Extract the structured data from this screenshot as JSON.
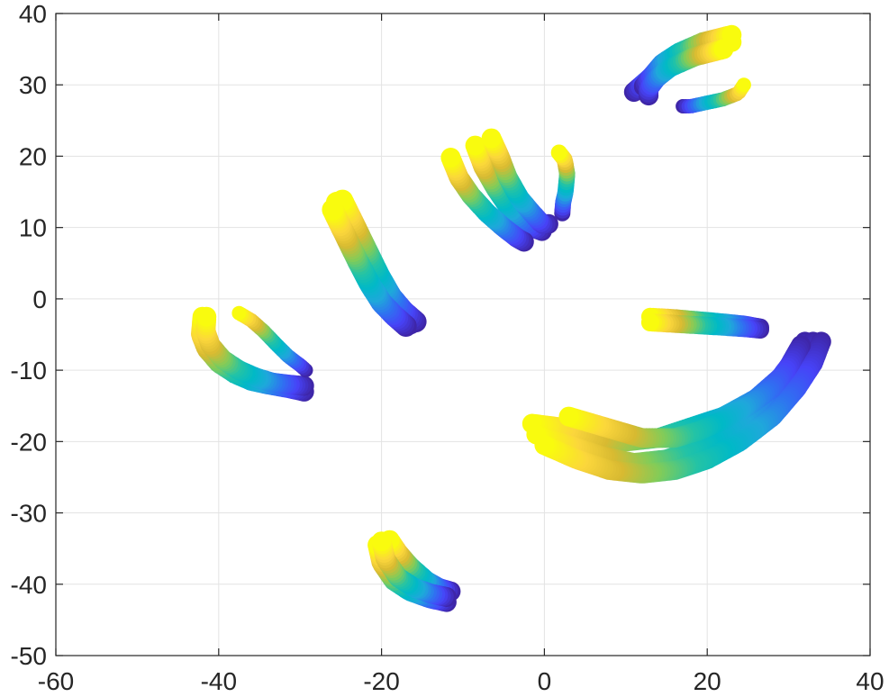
{
  "chart_data": {
    "type": "scatter",
    "title": "",
    "xlabel": "",
    "ylabel": "",
    "xlim": [
      -60,
      40
    ],
    "ylim": [
      -50,
      40
    ],
    "xticks": [
      -60,
      -40,
      -20,
      0,
      20,
      40
    ],
    "yticks": [
      -50,
      -40,
      -30,
      -20,
      -10,
      0,
      10,
      20,
      30,
      40
    ],
    "xtick_labels": [
      "-60",
      "-40",
      "-20",
      "0",
      "20",
      "40"
    ],
    "ytick_labels": [
      "-50",
      "-40",
      "-30",
      "-20",
      "-10",
      "0",
      "10",
      "20",
      "30",
      "40"
    ],
    "grid": true,
    "box": true,
    "colormap": [
      "#3e26a8",
      "#4743f8",
      "#2f71f1",
      "#1fa8db",
      "#00b9c7",
      "#24c3a5",
      "#81cc59",
      "#d8ba31",
      "#fbd63c",
      "#f9fb0e"
    ],
    "color_scale_note": "yellow=1 (start), blue=0 (end)",
    "series": [
      {
        "label": "",
        "marker_size": 11,
        "tracks": [
          {
            "points": [
              [
                -42.0,
                -2.5
              ],
              [
                -42.2,
                -5
              ],
              [
                -41.5,
                -7
              ],
              [
                -40,
                -9
              ],
              [
                -38,
                -10.5
              ],
              [
                -36,
                -11.5
              ],
              [
                -34,
                -12
              ],
              [
                -31.5,
                -12.5
              ],
              [
                -29.5,
                -13
              ]
            ],
            "c": [
              1,
              0
            ]
          },
          {
            "points": [
              [
                -41.5,
                -2.5
              ],
              [
                -41.6,
                -4.5
              ],
              [
                -41,
                -6.5
              ],
              [
                -39.5,
                -8.5
              ],
              [
                -37.5,
                -10
              ],
              [
                -35.5,
                -11
              ],
              [
                -33.5,
                -11.7
              ],
              [
                -31.5,
                -12
              ],
              [
                -29.5,
                -12.2
              ]
            ],
            "c": [
              1,
              0
            ]
          }
        ]
      },
      {
        "label": "",
        "marker_size": 8,
        "tracks": [
          {
            "points": [
              [
                -37.5,
                -2
              ],
              [
                -36,
                -3
              ],
              [
                -34.5,
                -4.5
              ],
              [
                -33,
                -6.3
              ],
              [
                -31.5,
                -8
              ],
              [
                -30,
                -9.3
              ],
              [
                -29.3,
                -10
              ]
            ],
            "c": [
              1,
              0
            ]
          }
        ]
      },
      {
        "label": "",
        "marker_size": 12,
        "tracks": [
          {
            "points": [
              [
                -25.5,
                13.5
              ],
              [
                -24,
                10
              ],
              [
                -22.5,
                6.5
              ],
              [
                -21,
                3
              ],
              [
                -19.5,
                0
              ],
              [
                -18,
                -2
              ],
              [
                -16.5,
                -3.5
              ]
            ],
            "c": [
              1,
              0
            ]
          },
          {
            "points": [
              [
                -24.8,
                13.8
              ],
              [
                -23.3,
                10.3
              ],
              [
                -21.8,
                6.8
              ],
              [
                -20.3,
                3.3
              ],
              [
                -18.8,
                0.3
              ],
              [
                -17.3,
                -1.7
              ],
              [
                -15.8,
                -3.2
              ]
            ],
            "c": [
              1,
              0
            ]
          },
          {
            "points": [
              [
                -26,
                12.5
              ],
              [
                -24.5,
                9
              ],
              [
                -23,
                5.5
              ],
              [
                -21.5,
                2.2
              ],
              [
                -20,
                -0.5
              ],
              [
                -18.5,
                -2.3
              ],
              [
                -17,
                -3.8
              ]
            ],
            "c": [
              1,
              0
            ]
          }
        ]
      },
      {
        "label": "",
        "marker_size": 11,
        "tracks": [
          {
            "points": [
              [
                -8.5,
                21.5
              ],
              [
                -7.5,
                18.5
              ],
              [
                -6,
                15.5
              ],
              [
                -4.5,
                13
              ],
              [
                -3,
                11
              ],
              [
                -1.5,
                10
              ],
              [
                -0.3,
                9.5
              ]
            ],
            "c": [
              1,
              0
            ]
          },
          {
            "points": [
              [
                -6.5,
                22.5
              ],
              [
                -5.5,
                20
              ],
              [
                -4.5,
                17
              ],
              [
                -3,
                14
              ],
              [
                -1.5,
                12
              ],
              [
                -0.3,
                10.5
              ],
              [
                0.5,
                10.5
              ]
            ],
            "c": [
              1,
              0
            ]
          },
          {
            "points": [
              [
                -11.5,
                19.8
              ],
              [
                -10.5,
                17
              ],
              [
                -9,
                14.5
              ],
              [
                -7,
                12
              ],
              [
                -5,
                10
              ],
              [
                -3.3,
                8.5
              ],
              [
                -2.5,
                8
              ]
            ],
            "c": [
              1,
              0
            ]
          }
        ]
      },
      {
        "label": "",
        "marker_size": 9,
        "tracks": [
          {
            "points": [
              [
                1.8,
                20.5
              ],
              [
                2.5,
                19.5
              ],
              [
                2.8,
                17.5
              ],
              [
                2.6,
                15
              ],
              [
                2.3,
                13.5
              ],
              [
                2.2,
                12
              ]
            ],
            "c": [
              1,
              0
            ]
          }
        ]
      },
      {
        "label": "",
        "marker_size": 11,
        "tracks": [
          {
            "points": [
              [
                23,
                36
              ],
              [
                19,
                35
              ],
              [
                16,
                33.5
              ],
              [
                14,
                32
              ],
              [
                12.5,
                30.5
              ],
              [
                11,
                29
              ]
            ],
            "c": [
              1,
              0
            ]
          },
          {
            "points": [
              [
                23,
                37
              ],
              [
                19.5,
                36
              ],
              [
                16.5,
                34.5
              ],
              [
                14.5,
                33
              ],
              [
                13,
                31
              ],
              [
                12.2,
                29.8
              ]
            ],
            "c": [
              1,
              0
            ]
          },
          {
            "points": [
              [
                22,
                35
              ],
              [
                18.5,
                34
              ],
              [
                15.5,
                32.5
              ],
              [
                13.8,
                31
              ],
              [
                12.8,
                29.5
              ],
              [
                12.8,
                28.5
              ]
            ],
            "c": [
              1,
              0
            ]
          }
        ]
      },
      {
        "label": "",
        "marker_size": 8,
        "tracks": [
          {
            "points": [
              [
                24.5,
                30
              ],
              [
                23.8,
                28.8
              ],
              [
                22,
                28
              ],
              [
                20,
                27.5
              ],
              [
                18,
                27
              ],
              [
                17,
                27
              ]
            ],
            "c": [
              1,
              0
            ]
          }
        ]
      },
      {
        "label": "",
        "marker_size": 10,
        "tracks": [
          {
            "points": [
              [
                13,
                -2.5
              ],
              [
                16,
                -2.7
              ],
              [
                19,
                -3
              ],
              [
                22,
                -3.3
              ],
              [
                24.5,
                -3.6
              ],
              [
                26.5,
                -4
              ]
            ],
            "c": [
              1,
              0
            ]
          },
          {
            "points": [
              [
                13,
                -3.3
              ],
              [
                16,
                -3.5
              ],
              [
                19,
                -3.7
              ],
              [
                22,
                -3.9
              ],
              [
                24.5,
                -4.1
              ],
              [
                26.5,
                -4.3
              ]
            ],
            "c": [
              1,
              0
            ]
          }
        ]
      },
      {
        "label": "",
        "marker_size": 11,
        "tracks": [
          {
            "points": [
              [
                -1.5,
                -17.5
              ],
              [
                2,
                -18
              ],
              [
                6,
                -19.5
              ],
              [
                10,
                -20
              ],
              [
                14,
                -19.5
              ],
              [
                18,
                -18
              ],
              [
                22,
                -16.5
              ],
              [
                26,
                -14
              ],
              [
                29,
                -11
              ],
              [
                31,
                -8
              ],
              [
                32,
                -6
              ]
            ],
            "c": [
              1,
              0
            ]
          },
          {
            "points": [
              [
                -1,
                -19
              ],
              [
                3,
                -20.5
              ],
              [
                7,
                -22
              ],
              [
                11,
                -23
              ],
              [
                15,
                -22.5
              ],
              [
                19,
                -21
              ],
              [
                23,
                -18.5
              ],
              [
                27,
                -15.5
              ],
              [
                30,
                -12
              ],
              [
                32,
                -8.5
              ],
              [
                33,
                -6
              ]
            ],
            "c": [
              1,
              0
            ]
          },
          {
            "points": [
              [
                0,
                -20.5
              ],
              [
                4,
                -22.5
              ],
              [
                8,
                -24
              ],
              [
                12,
                -24.5
              ],
              [
                16,
                -24
              ],
              [
                20,
                -22.5
              ],
              [
                24,
                -20
              ],
              [
                28,
                -16.5
              ],
              [
                31,
                -12.5
              ],
              [
                33,
                -9
              ],
              [
                34,
                -6
              ]
            ],
            "c": [
              1,
              0
            ]
          },
          {
            "points": [
              [
                3,
                -16.5
              ],
              [
                6,
                -17.5
              ],
              [
                9,
                -18.5
              ],
              [
                12,
                -19.5
              ],
              [
                16,
                -19.5
              ],
              [
                19,
                -18.5
              ],
              [
                22,
                -17
              ],
              [
                25,
                -15
              ],
              [
                28,
                -12.5
              ],
              [
                30,
                -9.5
              ],
              [
                31.5,
                -6.5
              ]
            ],
            "c": [
              1,
              0
            ]
          }
        ]
      },
      {
        "label": "",
        "marker_size": 11,
        "tracks": [
          {
            "points": [
              [
                -20.5,
                -34.5
              ],
              [
                -20,
                -37
              ],
              [
                -18.5,
                -39.5
              ],
              [
                -16.5,
                -41
              ],
              [
                -14,
                -42
              ],
              [
                -12,
                -42.5
              ]
            ],
            "c": [
              1,
              0
            ]
          },
          {
            "points": [
              [
                -19,
                -33.8
              ],
              [
                -18,
                -35.5
              ],
              [
                -16.5,
                -37.5
              ],
              [
                -14.5,
                -39.5
              ],
              [
                -13,
                -40.5
              ],
              [
                -11.5,
                -41
              ]
            ],
            "c": [
              1,
              0
            ]
          },
          {
            "points": [
              [
                -20,
                -34
              ],
              [
                -19.5,
                -36.5
              ],
              [
                -18,
                -39
              ],
              [
                -16,
                -40.5
              ],
              [
                -14,
                -41.3
              ],
              [
                -12,
                -41.8
              ]
            ],
            "c": [
              1,
              0
            ]
          }
        ]
      }
    ]
  }
}
